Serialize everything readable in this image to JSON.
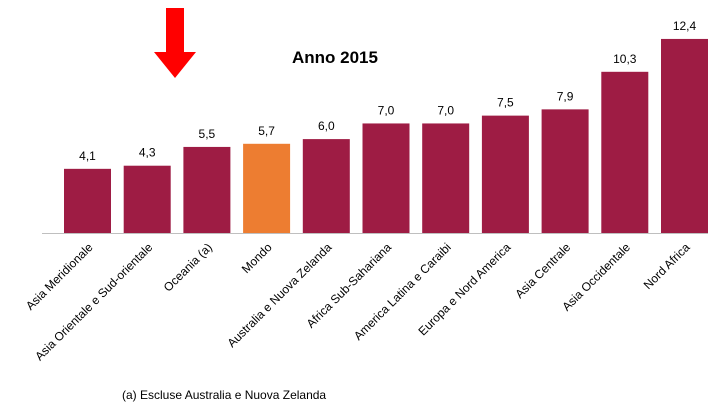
{
  "chart_data": {
    "type": "bar",
    "title": "Anno 2015",
    "categories": [
      "Asia Meridionale",
      "Asia Orientale e Sud-orientale",
      "Oceania (a)",
      "Mondo",
      "Australia e Nuova Zelanda",
      "Africa Sub-Sahariana",
      "America Latina e Caraibi",
      "Europa e Nord America",
      "Asia Centrale",
      "Asia Occidentale",
      "Nord Africa"
    ],
    "values": [
      4.1,
      4.3,
      5.5,
      5.7,
      6.0,
      7.0,
      7.0,
      7.5,
      7.9,
      10.3,
      12.4
    ],
    "value_labels": [
      "4,1",
      "4,3",
      "5,5",
      "5,7",
      "6,0",
      "7,0",
      "7,0",
      "7,5",
      "7,9",
      "10,3",
      "12,4"
    ],
    "colors": [
      "#9e1c44",
      "#9e1c44",
      "#9e1c44",
      "#ed7d31",
      "#9e1c44",
      "#9e1c44",
      "#9e1c44",
      "#9e1c44",
      "#9e1c44",
      "#9e1c44",
      "#9e1c44"
    ],
    "note": "(a) Escluse Australia e Nuova Zelanda"
  }
}
